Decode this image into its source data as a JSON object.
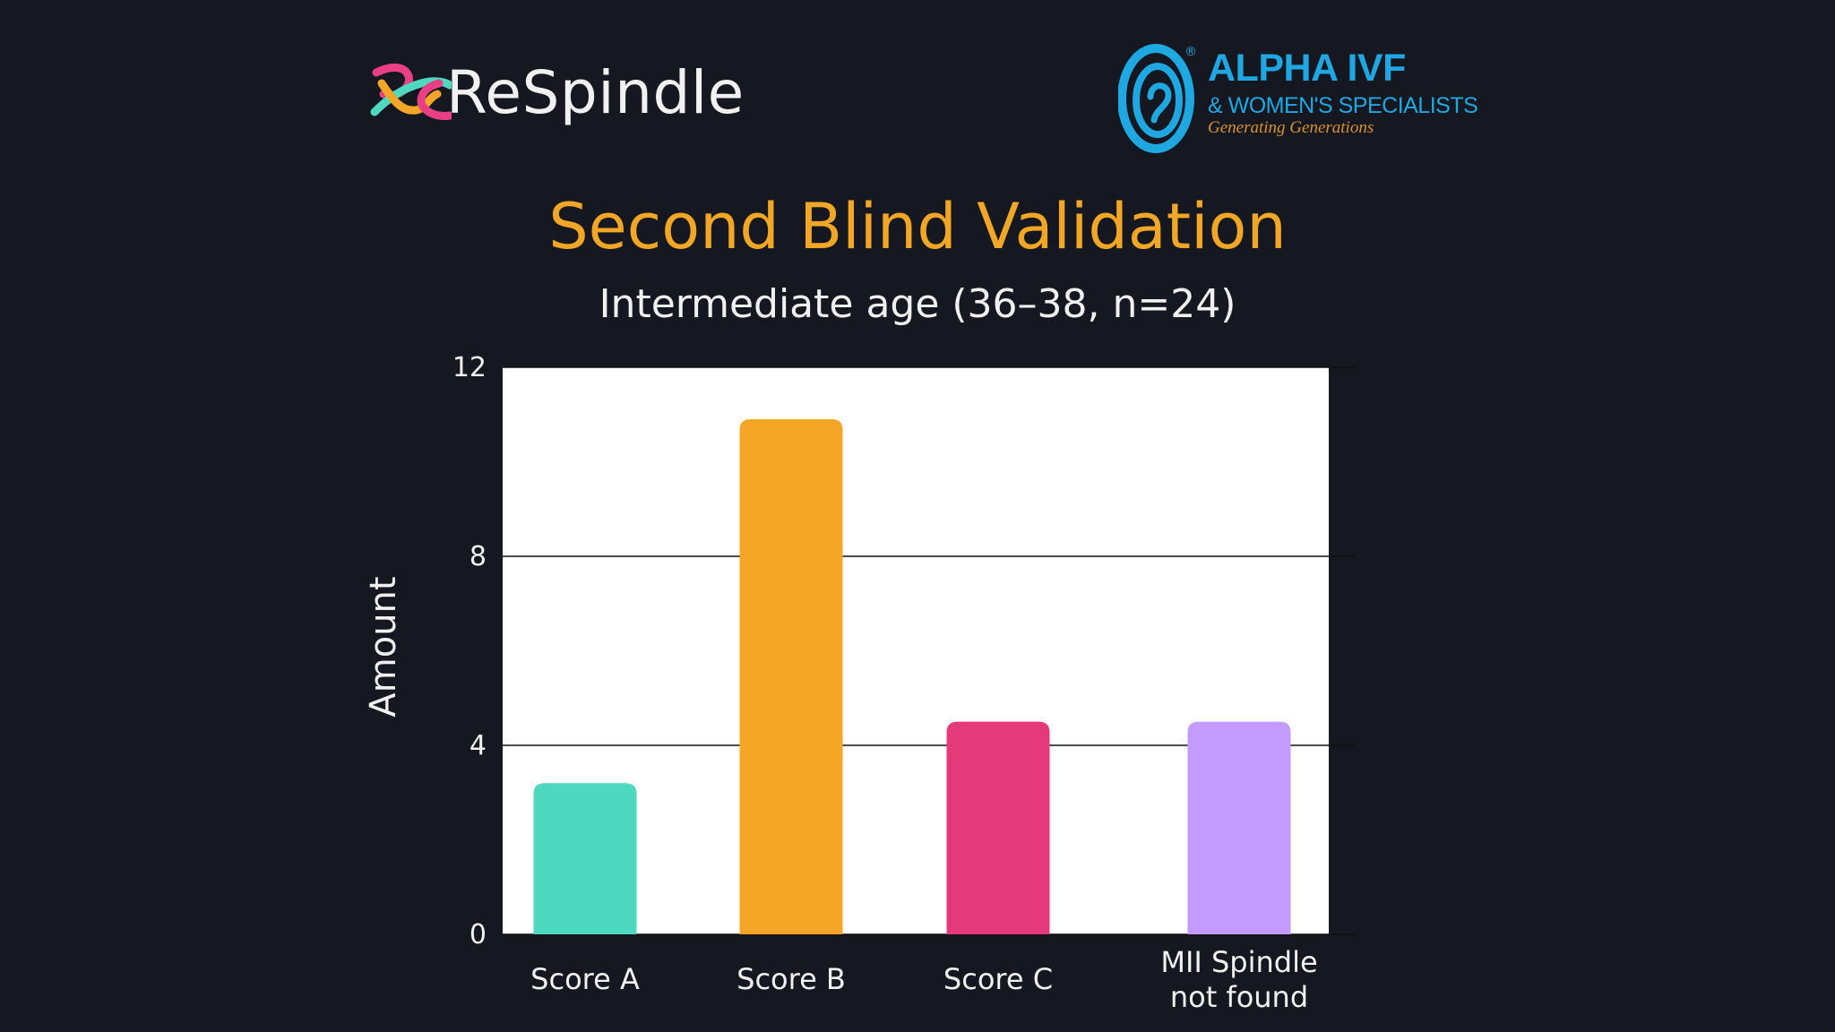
{
  "logos": {
    "respindle": {
      "text": "ReSpindle"
    },
    "alpha_ivf": {
      "name": "ALPHA IVF",
      "subname": "& WOMEN'S SPECIALISTS",
      "tagline": "Generating Generations",
      "registered_mark": "®"
    }
  },
  "colors": {
    "background": "#161821",
    "title": "#f2a626",
    "text": "#f1f1f1",
    "plot_background": "#ffffff",
    "alpha_blue": "#1ea7e1"
  },
  "chart_data": {
    "type": "bar",
    "title": "Second Blind Validation",
    "subtitle": "Intermediate age (36–38, n=24)",
    "xlabel": "",
    "ylabel": "Amount",
    "categories": [
      "Score A",
      "Score B",
      "Score C",
      "MII Spindle\nnot found"
    ],
    "values": [
      3.2,
      10.9,
      4.5,
      4.5
    ],
    "bar_colors": [
      "#4fd8c0",
      "#f5a627",
      "#e43a7a",
      "#c39bff"
    ],
    "ylim": [
      0,
      12
    ],
    "yticks": [
      0,
      4,
      8,
      12
    ],
    "grid": true
  }
}
